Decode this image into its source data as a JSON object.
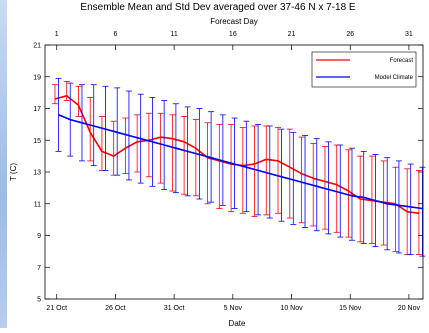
{
  "chart_data": {
    "type": "line",
    "title": "Ensemble Mean and Std Dev averaged over 37-46 N x 7-18 E",
    "xlabel": "Date",
    "ylabel": "T (C)",
    "top_xlabel": "Forecast Day",
    "ylim": [
      5,
      21
    ],
    "yticks": [
      5,
      7,
      9,
      11,
      13,
      15,
      17,
      19,
      21
    ],
    "x_bottom_ticks": [
      {
        "day": 1,
        "label": "21 Oct"
      },
      {
        "day": 6,
        "label": "26 Oct"
      },
      {
        "day": 11,
        "label": "31 Oct"
      },
      {
        "day": 16,
        "label": "5 Nov"
      },
      {
        "day": 21,
        "label": "10 Nov"
      },
      {
        "day": 26,
        "label": "15 Nov"
      },
      {
        "day": 31,
        "label": "20 Nov"
      }
    ],
    "x_top_ticks": [
      "1",
      "6",
      "11",
      "16",
      "21",
      "26",
      "31"
    ],
    "xlim": [
      0,
      32.2
    ],
    "grid": false,
    "legend_position": "top-right",
    "series": [
      {
        "name": "Forecast",
        "color": "#ff0000",
        "mean": [
          17.6,
          17.8,
          17.2,
          15.5,
          14.3,
          14.0,
          14.5,
          14.9,
          15.0,
          15.2,
          15.1,
          14.9,
          14.5,
          13.9,
          13.7,
          13.5,
          13.4,
          13.5,
          13.8,
          13.7,
          13.3,
          12.9,
          12.6,
          12.4,
          12.2,
          11.8,
          11.3,
          11.2,
          11.1,
          11.0,
          10.5,
          10.4
        ],
        "upper": [
          18.5,
          18.7,
          18.4,
          17.7,
          16.5,
          16.2,
          16.4,
          16.6,
          16.7,
          16.7,
          16.6,
          16.5,
          16.3,
          16.1,
          16.0,
          16.0,
          15.8,
          15.9,
          15.9,
          15.8,
          15.7,
          15.2,
          14.8,
          14.6,
          14.7,
          14.4,
          14.0,
          14.0,
          13.7,
          13.3,
          13.2,
          13.1
        ],
        "lower": [
          17.3,
          17.5,
          16.5,
          13.7,
          13.1,
          12.8,
          12.9,
          13.0,
          12.7,
          12.3,
          11.8,
          11.6,
          11.5,
          11.0,
          10.7,
          10.5,
          10.4,
          10.2,
          10.3,
          10.4,
          10.1,
          9.8,
          9.6,
          9.4,
          9.2,
          8.9,
          8.6,
          8.5,
          8.4,
          8.0,
          7.8,
          7.8
        ]
      },
      {
        "name": "Model Climate",
        "color": "#0000ff",
        "mean": [
          16.6,
          16.3,
          16.1,
          15.9,
          15.7,
          15.5,
          15.3,
          15.1,
          14.9,
          14.7,
          14.5,
          14.3,
          14.1,
          13.9,
          13.7,
          13.5,
          13.3,
          13.1,
          12.9,
          12.7,
          12.5,
          12.3,
          12.1,
          11.9,
          11.7,
          11.5,
          11.4,
          11.2,
          11.0,
          10.9,
          10.8,
          10.7
        ],
        "upper": [
          18.9,
          18.6,
          18.5,
          18.5,
          18.4,
          18.3,
          18.1,
          17.9,
          17.7,
          17.5,
          17.3,
          17.1,
          17.0,
          16.8,
          16.6,
          16.4,
          16.2,
          16.0,
          15.9,
          15.7,
          15.5,
          15.3,
          15.1,
          14.9,
          14.7,
          14.5,
          14.3,
          14.1,
          13.9,
          13.7,
          13.5,
          13.3
        ],
        "lower": [
          14.3,
          14.0,
          13.7,
          13.4,
          13.1,
          12.8,
          12.5,
          12.3,
          12.1,
          11.9,
          11.7,
          11.5,
          11.3,
          11.1,
          10.9,
          10.7,
          10.5,
          10.3,
          10.1,
          9.9,
          9.7,
          9.5,
          9.3,
          9.1,
          8.9,
          8.7,
          8.5,
          8.3,
          8.1,
          7.9,
          7.8,
          7.7
        ]
      }
    ]
  }
}
